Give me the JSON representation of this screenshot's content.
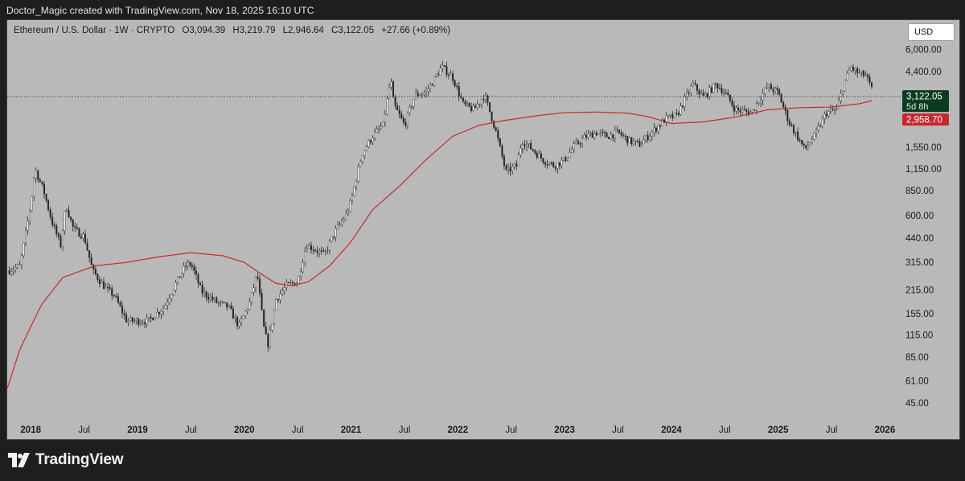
{
  "header": {
    "credit": "Doctor_Magic created with TradingView.com, Nov 18, 2025 16:10 UTC"
  },
  "legend": {
    "symbol": "Ethereum / U.S. Dollar · 1W · CRYPTO",
    "open": "O3,094.39",
    "high": "H3,219.79",
    "low": "L2,946.64",
    "close": "C3,122.05",
    "change": "+27.66 (+0.89%)"
  },
  "currency_button": "USD",
  "price_labels": {
    "last_price": "3,122.05",
    "countdown": "5d 8h",
    "ma_value": "2,958.70"
  },
  "brand": {
    "name": "TradingView"
  },
  "colors": {
    "bull": "#ffffff",
    "bear": "#222222",
    "ma_line": "#c8282d",
    "last_price_bg": "#0d3b22",
    "ma_label_bg": "#c8282d"
  },
  "chart_data": {
    "type": "candlestick",
    "title": "Ethereum / U.S. Dollar · 1W · CRYPTO",
    "scale": "log",
    "ylim": [
      36,
      7200
    ],
    "xlim": [
      2017.78,
      2026.2
    ],
    "y_ticks": [
      {
        "v": 6000,
        "label": "6,000.00"
      },
      {
        "v": 4400,
        "label": "4,400.00"
      },
      {
        "v": 1550,
        "label": "1,550.00"
      },
      {
        "v": 1150,
        "label": "1,150.00"
      },
      {
        "v": 850,
        "label": "850.00"
      },
      {
        "v": 600,
        "label": "600.00"
      },
      {
        "v": 440,
        "label": "440.00"
      },
      {
        "v": 315,
        "label": "315.00"
      },
      {
        "v": 215,
        "label": "215.00"
      },
      {
        "v": 155,
        "label": "155.00"
      },
      {
        "v": 115,
        "label": "115.00"
      },
      {
        "v": 85,
        "label": "85.00"
      },
      {
        "v": 61,
        "label": "61.00"
      },
      {
        "v": 45,
        "label": "45.00"
      }
    ],
    "x_ticks": [
      {
        "t": 2018.0,
        "label": "2018",
        "bold": true
      },
      {
        "t": 2018.5,
        "label": "Jul",
        "bold": false
      },
      {
        "t": 2019.0,
        "label": "2019",
        "bold": true
      },
      {
        "t": 2019.5,
        "label": "Jul",
        "bold": false
      },
      {
        "t": 2020.0,
        "label": "2020",
        "bold": true
      },
      {
        "t": 2020.5,
        "label": "Jul",
        "bold": false
      },
      {
        "t": 2021.0,
        "label": "2021",
        "bold": true
      },
      {
        "t": 2021.5,
        "label": "Jul",
        "bold": false
      },
      {
        "t": 2022.0,
        "label": "2022",
        "bold": true
      },
      {
        "t": 2022.5,
        "label": "Jul",
        "bold": false
      },
      {
        "t": 2023.0,
        "label": "2023",
        "bold": true
      },
      {
        "t": 2023.5,
        "label": "Jul",
        "bold": false
      },
      {
        "t": 2024.0,
        "label": "2024",
        "bold": true
      },
      {
        "t": 2024.5,
        "label": "Jul",
        "bold": false
      },
      {
        "t": 2025.0,
        "label": "2025",
        "bold": true
      },
      {
        "t": 2025.5,
        "label": "Jul",
        "bold": false
      },
      {
        "t": 2026.0,
        "label": "2026",
        "bold": true
      }
    ],
    "price_anchors": [
      [
        2017.78,
        280
      ],
      [
        2017.9,
        300
      ],
      [
        2018.0,
        700
      ],
      [
        2018.04,
        1150
      ],
      [
        2018.12,
        850
      ],
      [
        2018.2,
        550
      ],
      [
        2018.28,
        400
      ],
      [
        2018.33,
        700
      ],
      [
        2018.4,
        500
      ],
      [
        2018.5,
        450
      ],
      [
        2018.58,
        280
      ],
      [
        2018.7,
        220
      ],
      [
        2018.78,
        200
      ],
      [
        2018.9,
        140
      ],
      [
        2019.0,
        140
      ],
      [
        2019.1,
        140
      ],
      [
        2019.25,
        170
      ],
      [
        2019.35,
        230
      ],
      [
        2019.45,
        300
      ],
      [
        2019.5,
        310
      ],
      [
        2019.6,
        210
      ],
      [
        2019.75,
        180
      ],
      [
        2019.85,
        170
      ],
      [
        2019.95,
        130
      ],
      [
        2020.05,
        180
      ],
      [
        2020.12,
        270
      ],
      [
        2020.18,
        130
      ],
      [
        2020.22,
        100
      ],
      [
        2020.3,
        190
      ],
      [
        2020.4,
        230
      ],
      [
        2020.5,
        240
      ],
      [
        2020.58,
        400
      ],
      [
        2020.65,
        380
      ],
      [
        2020.75,
        350
      ],
      [
        2020.85,
        480
      ],
      [
        2020.95,
        600
      ],
      [
        2021.0,
        730
      ],
      [
        2021.1,
        1400
      ],
      [
        2021.2,
        1800
      ],
      [
        2021.3,
        2100
      ],
      [
        2021.37,
        4000
      ],
      [
        2021.4,
        2800
      ],
      [
        2021.5,
        2100
      ],
      [
        2021.6,
        3200
      ],
      [
        2021.7,
        3300
      ],
      [
        2021.85,
        4700
      ],
      [
        2021.95,
        4100
      ],
      [
        2022.05,
        2800
      ],
      [
        2022.15,
        2600
      ],
      [
        2022.25,
        3200
      ],
      [
        2022.35,
        2000
      ],
      [
        2022.45,
        1100
      ],
      [
        2022.55,
        1200
      ],
      [
        2022.6,
        1700
      ],
      [
        2022.7,
        1500
      ],
      [
        2022.8,
        1300
      ],
      [
        2022.9,
        1200
      ],
      [
        2023.0,
        1300
      ],
      [
        2023.1,
        1600
      ],
      [
        2023.2,
        1800
      ],
      [
        2023.3,
        1900
      ],
      [
        2023.4,
        1800
      ],
      [
        2023.5,
        1900
      ],
      [
        2023.6,
        1700
      ],
      [
        2023.7,
        1600
      ],
      [
        2023.85,
        2000
      ],
      [
        2023.95,
        2300
      ],
      [
        2024.05,
        2400
      ],
      [
        2024.2,
        3700
      ],
      [
        2024.3,
        3100
      ],
      [
        2024.42,
        3700
      ],
      [
        2024.5,
        3300
      ],
      [
        2024.6,
        2600
      ],
      [
        2024.75,
        2500
      ],
      [
        2024.9,
        3600
      ],
      [
        2025.0,
        3300
      ],
      [
        2025.1,
        2200
      ],
      [
        2025.25,
        1500
      ],
      [
        2025.35,
        1850
      ],
      [
        2025.45,
        2500
      ],
      [
        2025.55,
        2600
      ],
      [
        2025.62,
        3800
      ],
      [
        2025.68,
        4700
      ],
      [
        2025.75,
        4300
      ],
      [
        2025.82,
        4200
      ],
      [
        2025.88,
        3400
      ],
      [
        2025.89,
        3122
      ]
    ],
    "moving_average": [
      [
        2017.78,
        55
      ],
      [
        2017.9,
        95
      ],
      [
        2018.1,
        175
      ],
      [
        2018.3,
        255
      ],
      [
        2018.6,
        300
      ],
      [
        2018.9,
        315
      ],
      [
        2019.2,
        340
      ],
      [
        2019.5,
        360
      ],
      [
        2019.8,
        345
      ],
      [
        2020.0,
        315
      ],
      [
        2020.15,
        270
      ],
      [
        2020.3,
        235
      ],
      [
        2020.45,
        228
      ],
      [
        2020.6,
        240
      ],
      [
        2020.8,
        300
      ],
      [
        2021.0,
        420
      ],
      [
        2021.2,
        650
      ],
      [
        2021.45,
        900
      ],
      [
        2021.7,
        1300
      ],
      [
        2021.95,
        1800
      ],
      [
        2022.2,
        2100
      ],
      [
        2022.45,
        2250
      ],
      [
        2022.75,
        2400
      ],
      [
        2023.0,
        2500
      ],
      [
        2023.3,
        2520
      ],
      [
        2023.6,
        2480
      ],
      [
        2023.8,
        2350
      ],
      [
        2024.0,
        2150
      ],
      [
        2024.3,
        2200
      ],
      [
        2024.6,
        2350
      ],
      [
        2024.9,
        2600
      ],
      [
        2025.2,
        2680
      ],
      [
        2025.5,
        2700
      ],
      [
        2025.75,
        2820
      ],
      [
        2025.89,
        2958.7
      ]
    ],
    "last_price": 3122.05,
    "ma_last": 2958.7
  }
}
